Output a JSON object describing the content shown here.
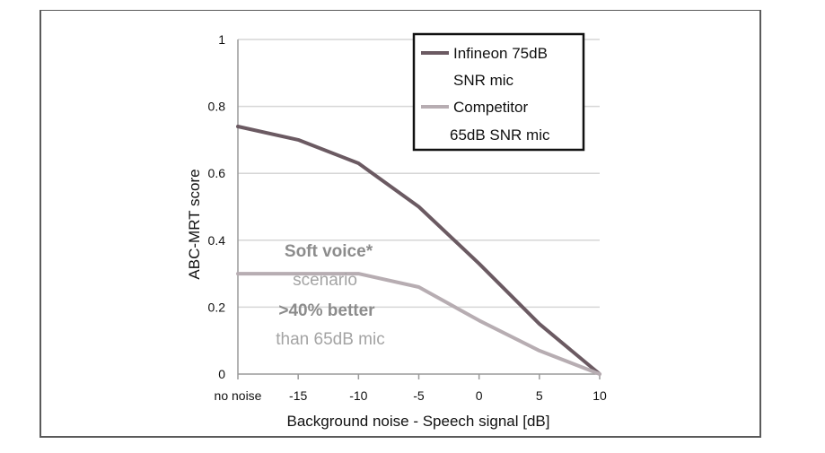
{
  "chart_data": {
    "type": "line",
    "title": "",
    "xlabel": "Background noise - Speech signal [dB]",
    "ylabel": "ABC-MRT score",
    "categories": [
      "no noise",
      "-15",
      "-10",
      "-5",
      "0",
      "5",
      "10"
    ],
    "ylim": [
      0,
      1
    ],
    "yticks": [
      "0",
      "0.2",
      "0.4",
      "0.6",
      "0.8",
      "1"
    ],
    "grid": true,
    "legend_position": "top-right",
    "series": [
      {
        "legend_lines": [
          "Infineon 75dB",
          "SNR mic"
        ],
        "color": "#6b5a62",
        "values": [
          0.74,
          0.7,
          0.63,
          0.5,
          0.33,
          0.15,
          0.0
        ]
      },
      {
        "legend_lines": [
          "Competitor",
          "65dB  SNR mic"
        ],
        "color": "#b7adb2",
        "values": [
          0.3,
          0.3,
          0.3,
          0.26,
          0.16,
          0.07,
          0.0
        ]
      }
    ],
    "annotation": {
      "line1": "Soft voice*",
      "line2": "scenario",
      "line3": ">40% better",
      "line4": "than 65dB mic"
    }
  }
}
